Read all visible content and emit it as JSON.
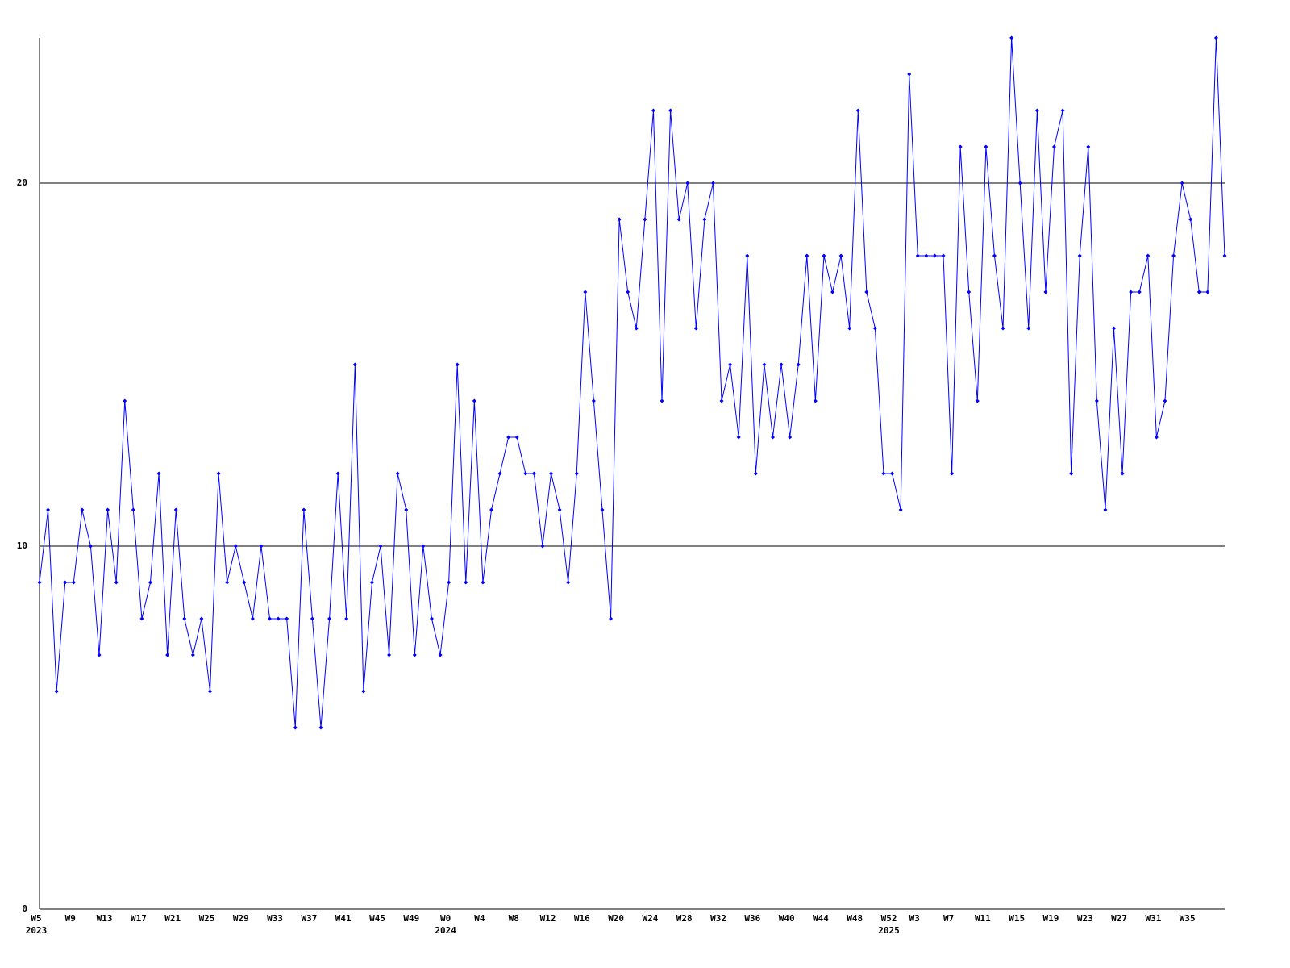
{
  "chart_data": {
    "type": "line",
    "categories": [
      "W5",
      null,
      null,
      null,
      "W9",
      null,
      null,
      null,
      "W13",
      null,
      null,
      null,
      "W17",
      null,
      null,
      null,
      "W21",
      null,
      null,
      null,
      "W25",
      null,
      null,
      null,
      "W29",
      null,
      null,
      null,
      "W33",
      null,
      null,
      null,
      "W37",
      null,
      null,
      null,
      "W41",
      null,
      null,
      null,
      "W45",
      null,
      null,
      null,
      "W49",
      null,
      null,
      null,
      "W0",
      null,
      null,
      null,
      "W4",
      null,
      null,
      null,
      "W8",
      null,
      null,
      null,
      "W12",
      null,
      null,
      null,
      "W16",
      null,
      null,
      null,
      "W20",
      null,
      null,
      null,
      "W24",
      null,
      null,
      null,
      "W28",
      null,
      null,
      null,
      "W32",
      null,
      null,
      null,
      "W36",
      null,
      null,
      null,
      "W40",
      null,
      null,
      null,
      "W44",
      null,
      null,
      null,
      "W48",
      null,
      null,
      null,
      "W52",
      null,
      null,
      "W3",
      null,
      null,
      null,
      "W7",
      null,
      null,
      null,
      "W11",
      null,
      null,
      null,
      "W15",
      null,
      null,
      null,
      "W19",
      null,
      null,
      null,
      "W23",
      null,
      null,
      null,
      "W27",
      null,
      null,
      null,
      "W31",
      null,
      null,
      null,
      "W35",
      null,
      null,
      null,
      null
    ],
    "years": [
      "2023",
      null,
      null,
      null,
      null,
      null,
      null,
      null,
      null,
      null,
      null,
      null,
      null,
      null,
      null,
      null,
      null,
      null,
      null,
      null,
      null,
      null,
      null,
      null,
      null,
      null,
      null,
      null,
      null,
      null,
      null,
      null,
      null,
      null,
      null,
      null,
      null,
      null,
      null,
      null,
      null,
      null,
      null,
      null,
      null,
      null,
      null,
      null,
      "2024",
      null,
      null,
      null,
      null,
      null,
      null,
      null,
      null,
      null,
      null,
      null,
      null,
      null,
      null,
      null,
      null,
      null,
      null,
      null,
      null,
      null,
      null,
      null,
      null,
      null,
      null,
      null,
      null,
      null,
      null,
      null,
      null,
      null,
      null,
      null,
      null,
      null,
      null,
      null,
      null,
      null,
      null,
      null,
      null,
      null,
      null,
      null,
      null,
      null,
      null,
      null,
      "2025",
      null,
      null,
      null,
      null,
      null,
      null,
      null,
      null,
      null,
      null,
      null,
      null,
      null,
      null,
      null,
      null,
      null,
      null,
      null,
      null,
      null,
      null,
      null,
      null,
      null,
      null,
      null,
      null,
      null,
      null,
      null,
      null,
      null,
      null,
      null,
      null,
      null,
      null,
      null
    ],
    "series": [
      {
        "color": "#0000ff",
        "values": [
          9,
          11,
          6,
          9,
          9,
          11,
          10,
          7,
          11,
          9,
          14,
          11,
          8,
          9,
          12,
          7,
          11,
          8,
          7,
          8,
          6,
          12,
          9,
          10,
          9,
          8,
          10,
          8,
          8,
          8,
          5,
          11,
          8,
          5,
          8,
          12,
          8,
          15,
          6,
          9,
          10,
          7,
          12,
          11,
          7,
          10,
          8,
          7,
          9,
          15,
          9,
          14,
          9,
          11,
          12,
          13,
          13,
          12,
          12,
          10,
          12,
          11,
          9,
          12,
          17,
          14,
          11,
          8,
          19,
          17,
          16,
          19,
          22,
          14,
          22,
          19,
          20,
          16,
          19,
          20,
          14,
          15,
          13,
          18,
          12,
          15,
          13,
          15,
          13,
          15,
          18,
          14,
          18,
          17,
          18,
          16,
          22,
          17,
          16,
          12,
          12,
          11,
          23,
          18,
          18,
          18,
          18,
          12,
          21,
          17,
          14,
          21,
          18,
          16,
          24,
          20,
          16,
          22,
          17,
          21,
          22,
          12,
          18,
          21,
          14,
          11,
          16,
          12,
          17,
          17,
          18,
          13,
          14,
          18,
          20,
          19,
          17,
          17,
          24,
          18
        ]
      }
    ],
    "ylim": [
      0,
      24
    ],
    "yticks": [
      0,
      10,
      20
    ],
    "grid": true
  }
}
